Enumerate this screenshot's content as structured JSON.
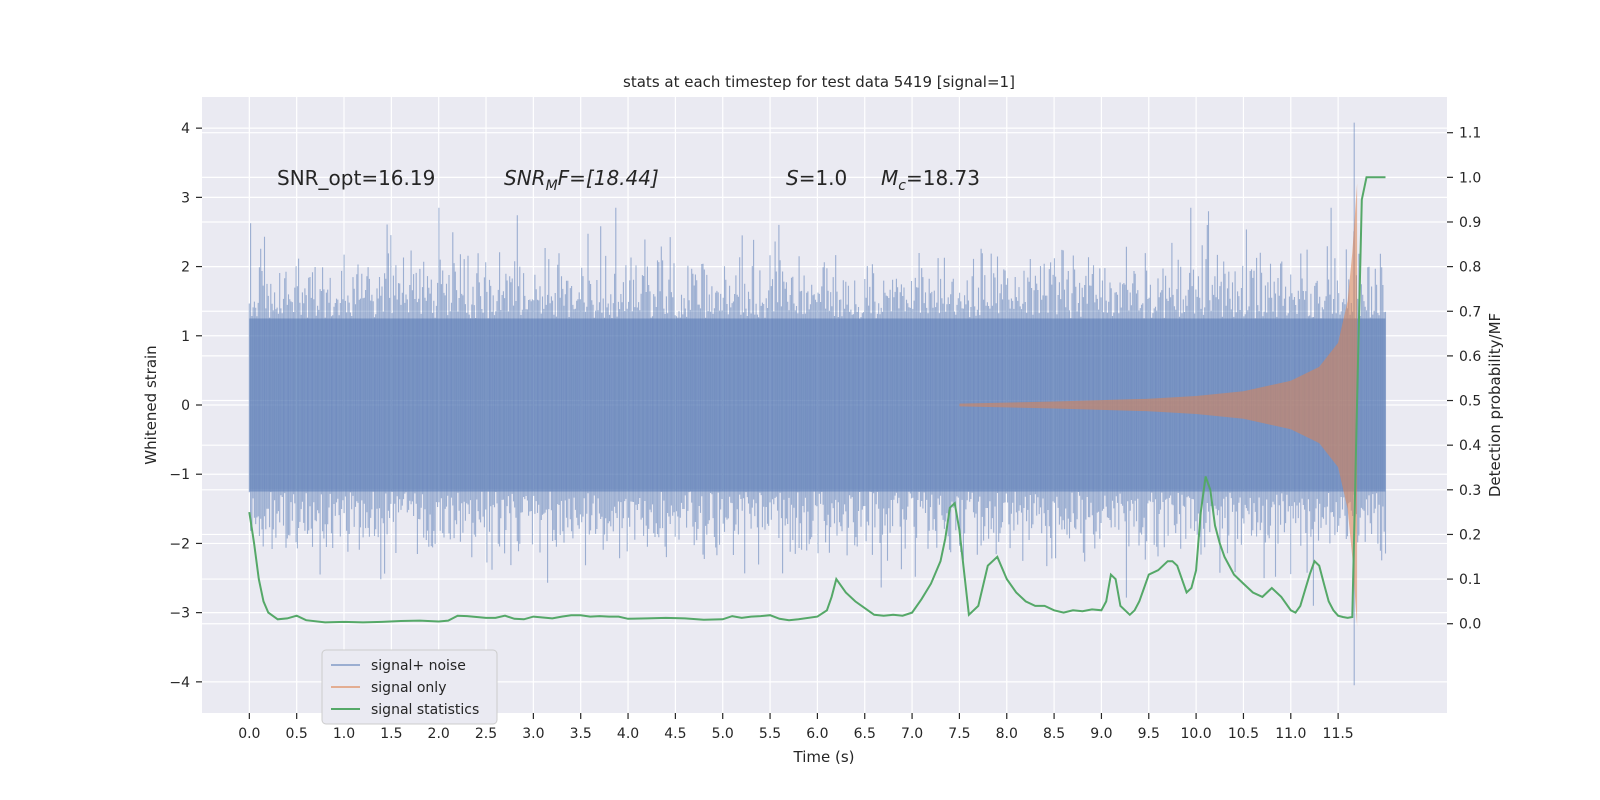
{
  "chart_data": {
    "type": "line",
    "title": "stats at each timestep for test data 5419 [signal=1]",
    "xlabel": "Time (s)",
    "ylabel_left": "Whitened strain",
    "ylabel_right": "Detection probability/MF",
    "xlim": [
      -0.5,
      12.65
    ],
    "ylim_left": [
      -4.45,
      4.45
    ],
    "ylim_right": [
      -0.2,
      1.18
    ],
    "x_ticks": [
      "0.0",
      "0.5",
      "1.0",
      "1.5",
      "2.0",
      "2.5",
      "3.0",
      "3.5",
      "4.0",
      "4.5",
      "5.0",
      "5.5",
      "6.0",
      "6.5",
      "7.0",
      "7.5",
      "8.0",
      "8.5",
      "9.0",
      "9.5",
      "10.0",
      "10.5",
      "11.0",
      "11.5"
    ],
    "y_left_ticks": [
      "4",
      "3",
      "2",
      "1",
      "0",
      "−1",
      "−2",
      "−3",
      "−4"
    ],
    "y_right_ticks": [
      "1.1",
      "1.0",
      "0.9",
      "0.8",
      "0.7",
      "0.6",
      "0.5",
      "0.4",
      "0.3",
      "0.2",
      "0.1",
      "0.0"
    ],
    "annotations": {
      "snr_opt": "SNR_opt=16.19",
      "snr_mf_base": "SNR",
      "snr_mf_sub": "M",
      "snr_mf_rest": "F=[18.44]",
      "s_var": "S",
      "s_rest": "=1.0",
      "mc_var": "M",
      "mc_sub": "c",
      "mc_rest": "=18.73"
    },
    "legend": [
      {
        "label": "signal+ noise",
        "color": "#4c72b0"
      },
      {
        "label": "signal only",
        "color": "#dd8452"
      },
      {
        "label": "signal statistics",
        "color": "#55a868"
      }
    ],
    "series": [
      {
        "name": "signal+ noise",
        "kind": "dense_noise",
        "x_range": [
          0.0,
          12.0
        ],
        "body_amplitude": 1.25,
        "peak_max": 4.08,
        "peak_min": -4.05,
        "color": "#4c72b0"
      },
      {
        "name": "signal only",
        "kind": "chirp",
        "envelope": [
          [
            7.5,
            0.02
          ],
          [
            8.5,
            0.05
          ],
          [
            9.5,
            0.09
          ],
          [
            10.0,
            0.13
          ],
          [
            10.5,
            0.2
          ],
          [
            11.0,
            0.35
          ],
          [
            11.3,
            0.55
          ],
          [
            11.5,
            0.9
          ],
          [
            11.6,
            1.5
          ],
          [
            11.65,
            2.2
          ],
          [
            11.7,
            3.2
          ]
        ],
        "color": "#dd8452"
      },
      {
        "name": "signal statistics",
        "kind": "line",
        "axis": "right",
        "color": "#55a868",
        "x": [
          0.0,
          0.05,
          0.1,
          0.15,
          0.2,
          0.3,
          0.4,
          0.5,
          0.6,
          0.8,
          1.0,
          1.2,
          1.4,
          1.6,
          1.8,
          2.0,
          2.1,
          2.2,
          2.3,
          2.5,
          2.6,
          2.7,
          2.8,
          2.9,
          3.0,
          3.1,
          3.2,
          3.3,
          3.4,
          3.5,
          3.6,
          3.7,
          3.8,
          3.9,
          4.0,
          4.2,
          4.4,
          4.6,
          4.8,
          5.0,
          5.1,
          5.2,
          5.3,
          5.4,
          5.5,
          5.6,
          5.7,
          5.8,
          6.0,
          6.1,
          6.15,
          6.2,
          6.3,
          6.4,
          6.5,
          6.6,
          6.7,
          6.8,
          6.9,
          7.0,
          7.1,
          7.2,
          7.3,
          7.35,
          7.4,
          7.45,
          7.5,
          7.6,
          7.7,
          7.8,
          7.9,
          8.0,
          8.1,
          8.2,
          8.3,
          8.4,
          8.5,
          8.6,
          8.7,
          8.8,
          8.9,
          9.0,
          9.05,
          9.1,
          9.15,
          9.2,
          9.3,
          9.35,
          9.4,
          9.5,
          9.6,
          9.7,
          9.75,
          9.8,
          9.85,
          9.9,
          9.95,
          10.0,
          10.05,
          10.1,
          10.15,
          10.2,
          10.25,
          10.3,
          10.4,
          10.5,
          10.6,
          10.7,
          10.8,
          10.9,
          11.0,
          11.05,
          11.1,
          11.15,
          11.2,
          11.25,
          11.3,
          11.35,
          11.4,
          11.45,
          11.5,
          11.55,
          11.6,
          11.65,
          11.7,
          11.75,
          11.8,
          11.85,
          11.9,
          11.95,
          12.0
        ],
        "y": [
          0.25,
          0.18,
          0.1,
          0.05,
          0.025,
          0.01,
          0.012,
          0.018,
          0.008,
          0.003,
          0.004,
          0.003,
          0.004,
          0.006,
          0.007,
          0.005,
          0.007,
          0.018,
          0.017,
          0.013,
          0.013,
          0.018,
          0.011,
          0.01,
          0.016,
          0.014,
          0.012,
          0.016,
          0.019,
          0.019,
          0.016,
          0.017,
          0.016,
          0.016,
          0.011,
          0.012,
          0.013,
          0.012,
          0.009,
          0.01,
          0.017,
          0.013,
          0.016,
          0.017,
          0.019,
          0.011,
          0.008,
          0.01,
          0.016,
          0.03,
          0.06,
          0.1,
          0.07,
          0.05,
          0.035,
          0.02,
          0.018,
          0.02,
          0.018,
          0.025,
          0.055,
          0.09,
          0.14,
          0.19,
          0.26,
          0.27,
          0.21,
          0.02,
          0.04,
          0.13,
          0.15,
          0.1,
          0.07,
          0.05,
          0.04,
          0.04,
          0.03,
          0.025,
          0.03,
          0.028,
          0.032,
          0.03,
          0.05,
          0.11,
          0.1,
          0.04,
          0.02,
          0.03,
          0.05,
          0.11,
          0.12,
          0.14,
          0.14,
          0.13,
          0.1,
          0.07,
          0.08,
          0.12,
          0.25,
          0.33,
          0.3,
          0.22,
          0.18,
          0.15,
          0.11,
          0.09,
          0.07,
          0.06,
          0.08,
          0.06,
          0.03,
          0.025,
          0.04,
          0.075,
          0.11,
          0.14,
          0.13,
          0.09,
          0.05,
          0.03,
          0.018,
          0.015,
          0.013,
          0.015,
          0.5,
          0.95,
          1.0,
          1.0,
          1.0,
          1.0,
          1.0
        ]
      }
    ]
  }
}
